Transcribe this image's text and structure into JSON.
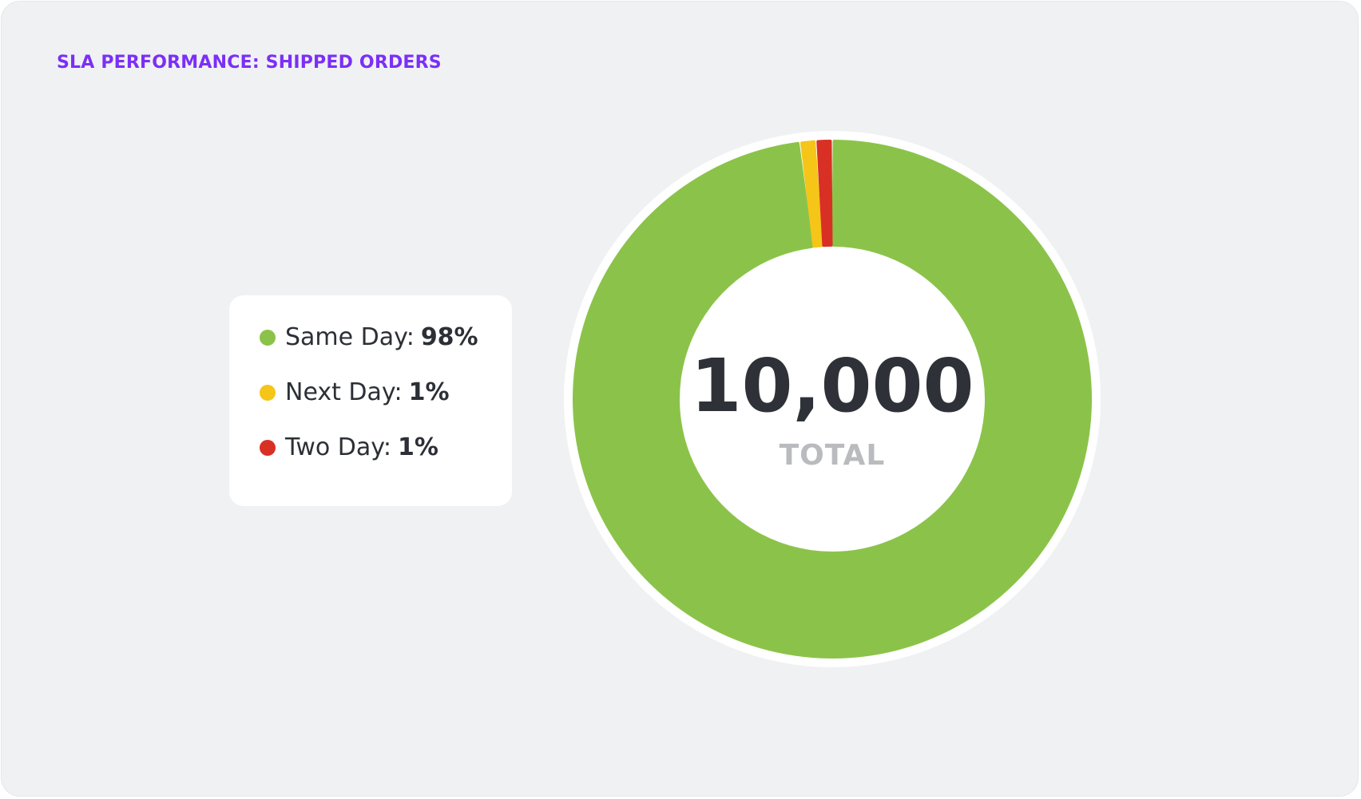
{
  "card": {
    "title": "SLA PERFORMANCE: SHIPPED ORDERS"
  },
  "legend": {
    "items": [
      {
        "label": "Same Day:",
        "value": "98%",
        "color": "#8bc34a"
      },
      {
        "label": "Next Day:",
        "value": "1%",
        "color": "#f5c518"
      },
      {
        "label": "Two Day:",
        "value": "1%",
        "color": "#d93025"
      }
    ]
  },
  "center": {
    "value": "10,000",
    "label": "TOTAL"
  },
  "chart_data": {
    "type": "pie",
    "title": "SLA PERFORMANCE: SHIPPED ORDERS",
    "categories": [
      "Same Day",
      "Next Day",
      "Two Day"
    ],
    "values": [
      98,
      1,
      1
    ],
    "unit": "%",
    "colors": [
      "#8bc34a",
      "#f5c518",
      "#d93025"
    ],
    "donut": true,
    "total": 10000,
    "legend": "left"
  }
}
